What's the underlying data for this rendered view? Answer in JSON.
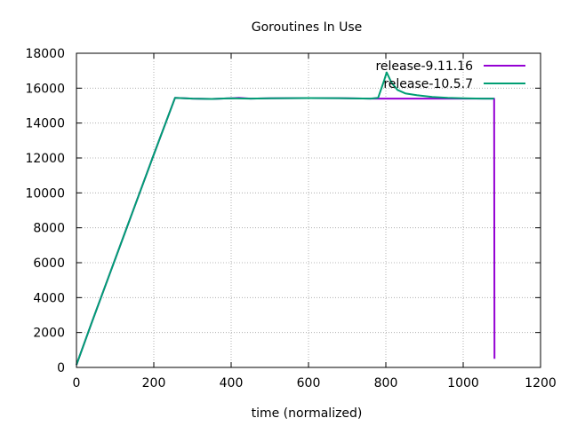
{
  "chart_data": {
    "type": "line",
    "title": "Goroutines In Use",
    "xlabel": "time (normalized)",
    "ylabel": "",
    "xlim": [
      0,
      1200
    ],
    "ylim": [
      0,
      18000
    ],
    "xticks": [
      0,
      200,
      400,
      600,
      800,
      1000,
      1200
    ],
    "yticks": [
      0,
      2000,
      4000,
      6000,
      8000,
      10000,
      12000,
      14000,
      16000,
      18000
    ],
    "grid": true,
    "legend_position": "top-right",
    "series": [
      {
        "name": "release-9.11.16",
        "color": "#9400d3",
        "points": [
          [
            0,
            150
          ],
          [
            40,
            2600
          ],
          [
            80,
            5000
          ],
          [
            120,
            7400
          ],
          [
            160,
            9800
          ],
          [
            200,
            12200
          ],
          [
            255,
            15450
          ],
          [
            300,
            15400
          ],
          [
            350,
            15380
          ],
          [
            400,
            15420
          ],
          [
            420,
            15450
          ],
          [
            450,
            15400
          ],
          [
            500,
            15420
          ],
          [
            600,
            15430
          ],
          [
            700,
            15420
          ],
          [
            760,
            15400
          ],
          [
            780,
            15400
          ],
          [
            800,
            15400
          ],
          [
            900,
            15400
          ],
          [
            1000,
            15400
          ],
          [
            1080,
            15400
          ],
          [
            1081,
            500
          ]
        ]
      },
      {
        "name": "release-10.5.7",
        "color": "#009e73",
        "points": [
          [
            0,
            150
          ],
          [
            40,
            2600
          ],
          [
            80,
            5000
          ],
          [
            120,
            7400
          ],
          [
            160,
            9800
          ],
          [
            200,
            12200
          ],
          [
            255,
            15450
          ],
          [
            300,
            15400
          ],
          [
            350,
            15380
          ],
          [
            400,
            15420
          ],
          [
            450,
            15400
          ],
          [
            500,
            15420
          ],
          [
            600,
            15430
          ],
          [
            700,
            15420
          ],
          [
            760,
            15400
          ],
          [
            780,
            15450
          ],
          [
            795,
            16400
          ],
          [
            802,
            16900
          ],
          [
            815,
            16300
          ],
          [
            830,
            15900
          ],
          [
            850,
            15700
          ],
          [
            880,
            15600
          ],
          [
            920,
            15500
          ],
          [
            960,
            15450
          ],
          [
            1000,
            15420
          ],
          [
            1050,
            15400
          ],
          [
            1080,
            15400
          ]
        ]
      }
    ]
  }
}
